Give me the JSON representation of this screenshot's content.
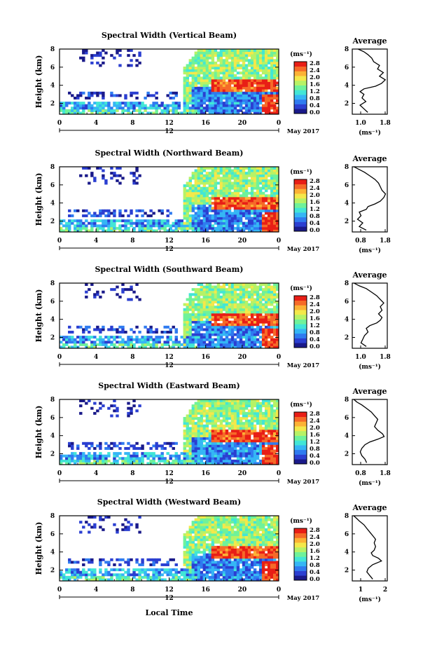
{
  "date_label": "May 2017",
  "xlabel_bottom": "Local Time",
  "colorbar": {
    "unit": "(ms⁻¹)",
    "ticks": [
      "0.0",
      "0.4",
      "0.8",
      "1.2",
      "1.6",
      "2.0",
      "2.4",
      "2.8"
    ],
    "colors": [
      "#1a1a8a",
      "#2b3fd1",
      "#2f7bf0",
      "#35b6f5",
      "#42e6d6",
      "#6ff29a",
      "#b7f266",
      "#f4e84a",
      "#fcb235",
      "#f66a28",
      "#e81e16"
    ]
  },
  "panels": [
    {
      "title": "Spectral Width (Vertical Beam)",
      "profile_ticks": [
        "1.0",
        "1.8"
      ]
    },
    {
      "title": "Spectral Width (Northward Beam)",
      "profile_ticks": [
        "0.8",
        "1.8"
      ]
    },
    {
      "title": "Spectral Width (Southward Beam)",
      "profile_ticks": [
        "1.0",
        "1.8"
      ]
    },
    {
      "title": "Spectral Width (Eastward Beam)",
      "profile_ticks": [
        "0.8",
        "1.8"
      ]
    },
    {
      "title": "Spectral Width (Westward Beam)",
      "profile_ticks": [
        "1",
        "2"
      ]
    }
  ],
  "chart_data": [
    {
      "type": "heatmap",
      "title": "Spectral Width (Vertical Beam)",
      "xlabel": "",
      "ylabel": "Height (km)",
      "xticks": [
        "0",
        "4",
        "8",
        "12",
        "16",
        "20",
        "0"
      ],
      "yticks": [
        "2",
        "4",
        "6",
        "8"
      ],
      "date_ticks": [
        "12",
        "May 2017"
      ],
      "xlim": [
        0,
        24
      ],
      "ylim": [
        0.8,
        8
      ],
      "average_profile": {
        "title": "Average",
        "xlabel": "(ms⁻¹)",
        "xlim": [
          0.9,
          1.8
        ],
        "ylim": [
          0.8,
          8
        ],
        "x": [
          1.3,
          1.2,
          1.1,
          1.25,
          1.15,
          1.2,
          1.1,
          1.2,
          1.5,
          1.65,
          1.75,
          1.6,
          1.7,
          1.55,
          1.6,
          1.45,
          1.4,
          1.3,
          1.2,
          1.05
        ],
        "y": [
          1.0,
          1.4,
          1.8,
          2.2,
          2.6,
          3.0,
          3.3,
          3.6,
          3.9,
          4.2,
          4.6,
          5.0,
          5.4,
          5.8,
          6.2,
          6.6,
          7.0,
          7.4,
          7.7,
          8.0
        ]
      }
    },
    {
      "type": "heatmap",
      "title": "Spectral Width (Northward Beam)",
      "xlabel": "",
      "ylabel": "Height (km)",
      "xticks": [
        "0",
        "4",
        "8",
        "12",
        "16",
        "20",
        "0"
      ],
      "yticks": [
        "2",
        "4",
        "6",
        "8"
      ],
      "date_ticks": [
        "12",
        "May 2017"
      ],
      "xlim": [
        0,
        24
      ],
      "ylim": [
        0.8,
        8
      ],
      "average_profile": {
        "title": "Average",
        "xlabel": "(ms⁻¹)",
        "xlim": [
          0.8,
          1.8
        ],
        "ylim": [
          0.8,
          8
        ],
        "x": [
          1.2,
          1.0,
          1.1,
          0.95,
          1.05,
          1.0,
          1.2,
          1.25,
          1.45,
          1.6,
          1.7,
          1.75,
          1.65,
          1.6,
          1.55,
          1.45,
          1.3,
          1.15,
          1.0,
          0.85
        ],
        "y": [
          1.0,
          1.4,
          1.8,
          2.2,
          2.6,
          3.0,
          3.3,
          3.6,
          3.9,
          4.2,
          4.6,
          5.0,
          5.4,
          5.8,
          6.2,
          6.6,
          7.0,
          7.4,
          7.7,
          8.0
        ]
      }
    },
    {
      "type": "heatmap",
      "title": "Spectral Width (Southward Beam)",
      "xlabel": "",
      "ylabel": "Height (km)",
      "xticks": [
        "0",
        "4",
        "8",
        "12",
        "16",
        "20",
        "0"
      ],
      "yticks": [
        "2",
        "4",
        "6",
        "8"
      ],
      "date_ticks": [
        "12",
        "May 2017"
      ],
      "xlim": [
        0,
        24
      ],
      "ylim": [
        0.8,
        8
      ],
      "average_profile": {
        "title": "Average",
        "xlabel": "(ms⁻¹)",
        "xlim": [
          0.9,
          1.9
        ],
        "ylim": [
          0.8,
          8
        ],
        "x": [
          1.3,
          1.15,
          1.2,
          1.25,
          1.35,
          1.3,
          1.4,
          1.6,
          1.7,
          1.75,
          1.65,
          1.75,
          1.7,
          1.8,
          1.7,
          1.6,
          1.45,
          1.3,
          1.1,
          0.95
        ],
        "y": [
          1.0,
          1.4,
          1.8,
          2.2,
          2.6,
          3.0,
          3.3,
          3.6,
          3.9,
          4.2,
          4.6,
          5.0,
          5.4,
          5.8,
          6.2,
          6.6,
          7.0,
          7.4,
          7.7,
          8.0
        ]
      }
    },
    {
      "type": "heatmap",
      "title": "Spectral Width (Eastward Beam)",
      "xlabel": "",
      "ylabel": "Height (km)",
      "xticks": [
        "0",
        "4",
        "8",
        "12",
        "16",
        "20",
        "0"
      ],
      "yticks": [
        "2",
        "4",
        "6",
        "8"
      ],
      "date_ticks": [
        "12",
        "May 2017"
      ],
      "xlim": [
        0,
        24
      ],
      "ylim": [
        0.8,
        8
      ],
      "average_profile": {
        "title": "Average",
        "xlabel": "(ms⁻¹)",
        "xlim": [
          0.8,
          1.9
        ],
        "ylim": [
          0.8,
          8
        ],
        "x": [
          1.25,
          1.2,
          1.1,
          1.05,
          1.1,
          1.2,
          1.35,
          1.6,
          1.8,
          1.75,
          1.6,
          1.5,
          1.55,
          1.6,
          1.5,
          1.4,
          1.25,
          1.1,
          0.95,
          0.85
        ],
        "y": [
          1.0,
          1.4,
          1.8,
          2.2,
          2.6,
          3.0,
          3.3,
          3.6,
          3.9,
          4.2,
          4.6,
          5.0,
          5.4,
          5.8,
          6.2,
          6.6,
          7.0,
          7.4,
          7.7,
          8.0
        ]
      }
    },
    {
      "type": "heatmap",
      "title": "Spectral Width (Westward Beam)",
      "xlabel": "Local Time",
      "ylabel": "Height (km)",
      "xticks": [
        "0",
        "4",
        "8",
        "12",
        "16",
        "20",
        "0"
      ],
      "yticks": [
        "2",
        "4",
        "6",
        "8"
      ],
      "date_ticks": [
        "12",
        "May 2017"
      ],
      "xlim": [
        0,
        24
      ],
      "ylim": [
        0.8,
        8
      ],
      "average_profile": {
        "title": "Average",
        "xlabel": "(ms⁻¹)",
        "xlim": [
          0.8,
          2.0
        ],
        "ylim": [
          0.8,
          8
        ],
        "x": [
          1.5,
          1.4,
          1.3,
          1.35,
          1.5,
          1.8,
          1.7,
          1.5,
          1.45,
          1.55,
          1.6,
          1.55,
          1.6,
          1.5,
          1.4,
          1.3,
          1.2,
          1.05,
          0.95,
          0.85
        ],
        "y": [
          1.0,
          1.4,
          1.8,
          2.2,
          2.6,
          3.0,
          3.3,
          3.6,
          3.9,
          4.2,
          4.6,
          5.0,
          5.4,
          5.8,
          6.2,
          6.6,
          7.0,
          7.4,
          7.7,
          8.0
        ]
      }
    }
  ]
}
